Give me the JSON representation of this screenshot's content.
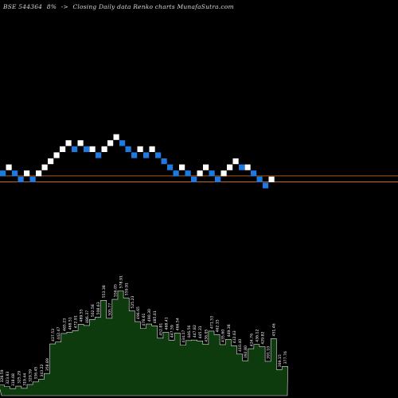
{
  "header": {
    "symbol": "BSE 544364",
    "change": "8%",
    "arrow": "->",
    "description": "Closing Daily data Renko charts MunafaSutra.com"
  },
  "colors": {
    "background": "#000000",
    "up_brick": "#ffffff",
    "down_brick": "#1e7ae0",
    "reference_line": "#c8641e",
    "volume_fill": "#0e3b0e",
    "volume_stroke": "#e0e0e0",
    "volume_label": "#ffffff"
  },
  "chart_data": {
    "type": "renko",
    "bricks": [
      {
        "level": 1,
        "dir": "down"
      },
      {
        "level": 2,
        "dir": "up"
      },
      {
        "level": 1,
        "dir": "down"
      },
      {
        "level": 0,
        "dir": "down"
      },
      {
        "level": 1,
        "dir": "up"
      },
      {
        "level": 0,
        "dir": "down"
      },
      {
        "level": 1,
        "dir": "up"
      },
      {
        "level": 2,
        "dir": "up"
      },
      {
        "level": 3,
        "dir": "up"
      },
      {
        "level": 4,
        "dir": "up"
      },
      {
        "level": 5,
        "dir": "up"
      },
      {
        "level": 6,
        "dir": "up"
      },
      {
        "level": 5,
        "dir": "down"
      },
      {
        "level": 6,
        "dir": "up"
      },
      {
        "level": 5,
        "dir": "down"
      },
      {
        "level": 5,
        "dir": "up"
      },
      {
        "level": 4,
        "dir": "down"
      },
      {
        "level": 5,
        "dir": "up"
      },
      {
        "level": 6,
        "dir": "up"
      },
      {
        "level": 7,
        "dir": "up"
      },
      {
        "level": 6,
        "dir": "down"
      },
      {
        "level": 5,
        "dir": "down"
      },
      {
        "level": 4,
        "dir": "down"
      },
      {
        "level": 5,
        "dir": "up"
      },
      {
        "level": 4,
        "dir": "down"
      },
      {
        "level": 5,
        "dir": "up"
      },
      {
        "level": 4,
        "dir": "down"
      },
      {
        "level": 3,
        "dir": "down"
      },
      {
        "level": 2,
        "dir": "down"
      },
      {
        "level": 1,
        "dir": "down"
      },
      {
        "level": 2,
        "dir": "up"
      },
      {
        "level": 1,
        "dir": "down"
      },
      {
        "level": 0,
        "dir": "down"
      },
      {
        "level": 1,
        "dir": "up"
      },
      {
        "level": 2,
        "dir": "up"
      },
      {
        "level": 1,
        "dir": "down"
      },
      {
        "level": 0,
        "dir": "down"
      },
      {
        "level": 1,
        "dir": "up"
      },
      {
        "level": 2,
        "dir": "up"
      },
      {
        "level": 3,
        "dir": "up"
      },
      {
        "level": 2,
        "dir": "down"
      },
      {
        "level": 2,
        "dir": "up"
      },
      {
        "level": 1,
        "dir": "down"
      },
      {
        "level": 0,
        "dir": "down"
      },
      {
        "level": -1,
        "dir": "down"
      },
      {
        "level": 0,
        "dir": "up"
      }
    ],
    "reference_lines": [
      1,
      0
    ],
    "volume_labels": [
      "328.59",
      "323.83",
      "318.68",
      "325.29",
      "319.44",
      "329.59",
      "336.45",
      "343.22",
      "358.89",
      "437.53",
      "442.47",
      "465.23",
      "468.51",
      "472.91",
      "489.55",
      "486.37",
      "502.58",
      "508.63",
      "553.38",
      "505.77",
      "556.05",
      "578.91",
      "559.91",
      "525.23",
      "496.65",
      "478.61",
      "490.30",
      "485.61",
      "452.81",
      "468.41",
      "447.59",
      "466.54",
      "434.17",
      "446.56",
      "447.82",
      "445.31",
      "436.05",
      "471.53",
      "462.15",
      "435.60",
      "449.38",
      "432.63",
      "410.40",
      "392.80",
      "424.76",
      "436.12",
      "429.82",
      "391.10",
      "451.46",
      "369.15",
      "377.76"
    ]
  }
}
